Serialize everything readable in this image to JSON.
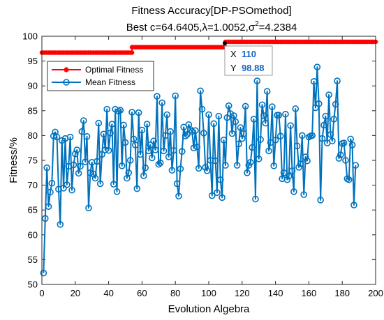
{
  "chart_data": {
    "type": "line",
    "title": "Fitness Accuracy[DP-PSOmethod]",
    "subtitle_prefix": "Best c=64.6405,λ=1.0052,σ",
    "subtitle_sup": "2",
    "subtitle_suffix": "=4.2384",
    "xlabel": "Evolution Algebra",
    "ylabel": "Fitness/%",
    "xlim": [
      0,
      200
    ],
    "ylim": [
      50,
      100
    ],
    "xticks": [
      0,
      20,
      40,
      60,
      80,
      100,
      120,
      140,
      160,
      180,
      200
    ],
    "yticks": [
      50,
      55,
      60,
      65,
      70,
      75,
      80,
      85,
      90,
      95,
      100
    ],
    "legend": {
      "placement": "top-left"
    },
    "series": [
      {
        "name": "Optimal Fitness",
        "color": "#ff0000",
        "marker": "asterisk",
        "points": [
          [
            0,
            96.7
          ],
          [
            54,
            96.7
          ],
          [
            54,
            97.8
          ],
          [
            110,
            97.8
          ],
          [
            110,
            98.88
          ],
          [
            200,
            98.88
          ]
        ]
      },
      {
        "name": "Mean Fitness",
        "color": "#0072bd",
        "marker": "circle",
        "x_start": 1,
        "values": [
          52.3,
          63.3,
          73.5,
          65.7,
          68.6,
          70.4,
          79.9,
          80.7,
          79.7,
          69.2,
          62.1,
          79.0,
          69.4,
          79.4,
          70.1,
          73.8,
          79.7,
          69.0,
          74.1,
          76.3,
          77.1,
          72.4,
          73.8,
          80.8,
          83.0,
          74.7,
          79.8,
          65.4,
          72.5,
          74.6,
          72.2,
          71.4,
          74.8,
          82.5,
          70.3,
          76.2,
          80.3,
          77.1,
          85.3,
          77.0,
          80.5,
          82.3,
          70.2,
          85.3,
          68.7,
          84.9,
          85.1,
          73.9,
          82.1,
          78.6,
          71.4,
          72.5,
          75.0,
          84.7,
          79.3,
          78.1,
          69.3,
          84.6,
          76.2,
          81.1,
          71.9,
          73.5,
          82.3,
          76.9,
          78.1,
          75.5,
          78.9,
          77.1,
          87.9,
          74.2,
          74.5,
          86.6,
          76.9,
          80.0,
          84.2,
          75.7,
          80.8,
          73.0,
          77.0,
          88.0,
          70.3,
          67.8,
          73.3,
          76.8,
          81.7,
          79.9,
          80.2,
          82.2,
          81.2,
          80.8,
          77.5,
          81.0,
          77.7,
          73.4,
          89.0,
          85.3,
          80.5,
          73.6,
          72.9,
          84.2,
          75.0,
          67.9,
          82.4,
          74.9,
          68.5,
          83.9,
          71.1,
          67.5,
          79.1,
          74.0,
          83.6,
          86.0,
          84.4,
          80.4,
          84.0,
          82.8,
          74.0,
          78.3,
          81.6,
          79.4,
          80.4,
          85.9,
          72.5,
          74.0,
          74.6,
          77.6,
          83.3,
          67.2,
          91.0,
          75.3,
          79.2,
          86.2,
          84.0,
          82.5,
          88.9,
          76.9,
          78.6,
          85.8,
          73.9,
          79.1,
          84.1,
          84.1,
          79.9,
          71.3,
          72.5,
          84.3,
          71.1,
          71.8,
          82.0,
          72.9,
          68.7,
          85.4,
          77.9,
          73.6,
          74.3,
          80.0,
          68.1,
          75.7,
          74.9,
          79.7,
          79.9,
          80.0,
          90.9,
          85.6,
          93.8,
          86.4,
          67.0,
          79.4,
          82.1,
          83.9,
          78.5,
          88.2,
          80.2,
          78.9,
          83.3,
          86.3,
          91.0,
          75.4,
          76.1,
          78.4,
          78.5,
          75.0,
          71.3,
          71.1,
          79.3,
          78.1,
          66.0,
          74.0
        ]
      }
    ],
    "datatip": {
      "x_label": "X",
      "x_value": "110",
      "y_label": "Y",
      "y_value": "98.88"
    }
  }
}
